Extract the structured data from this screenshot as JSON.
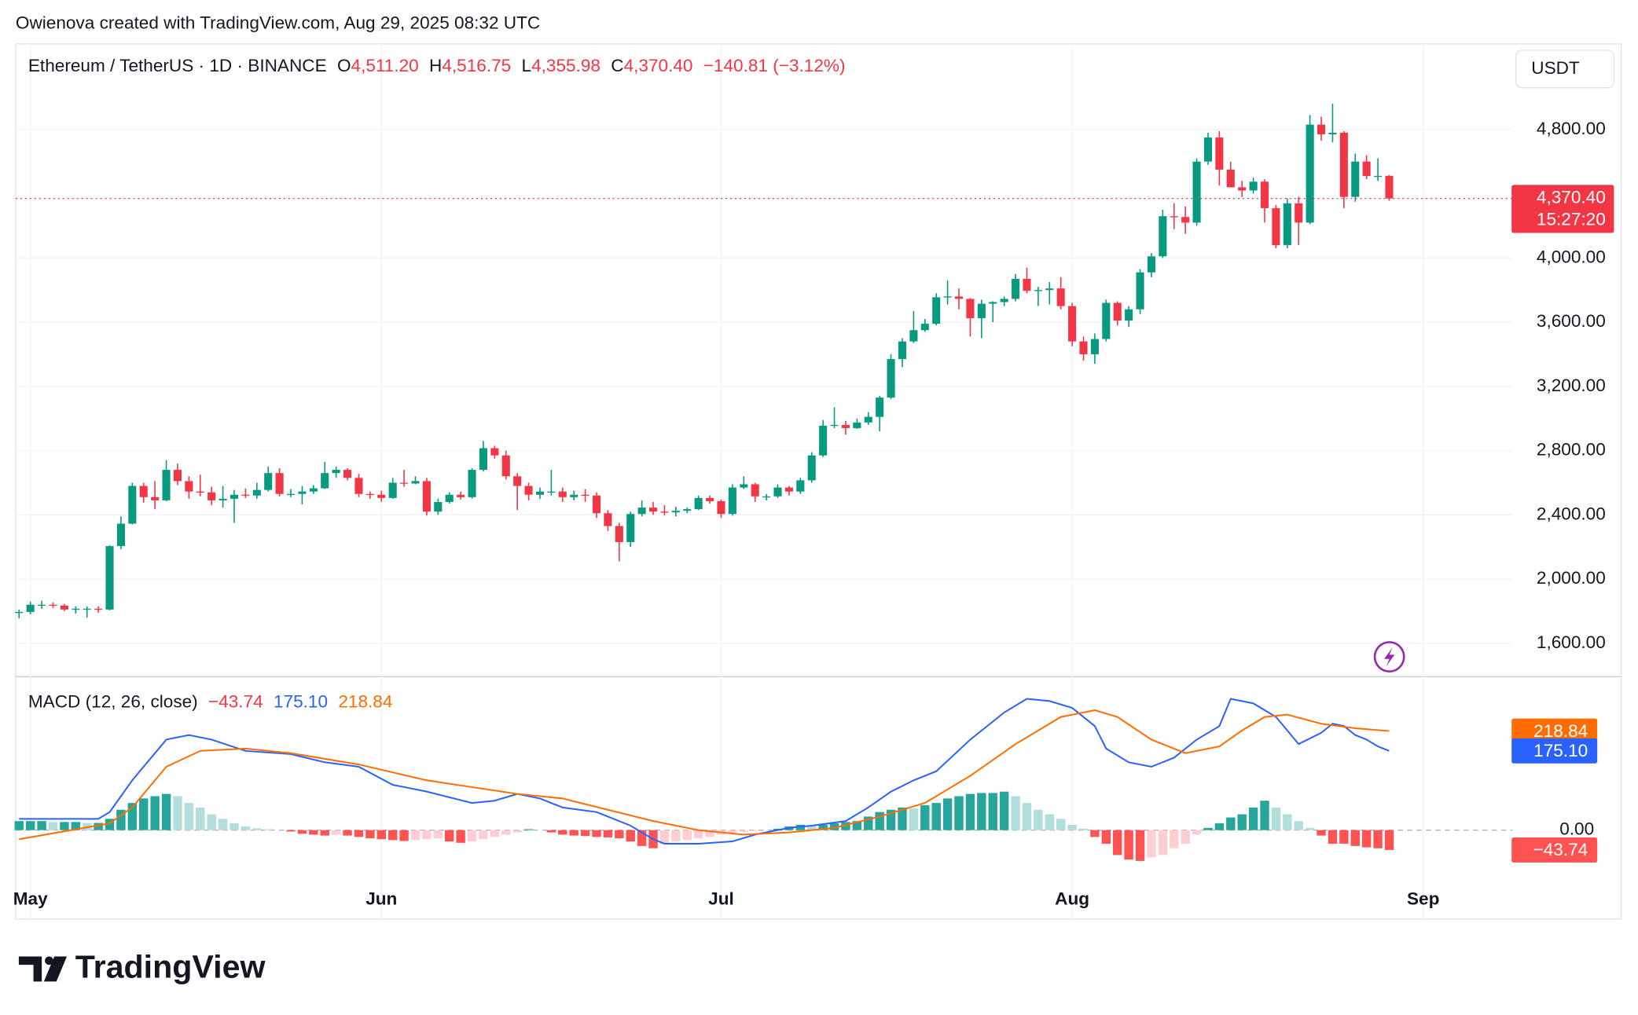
{
  "page": {
    "attribution": "Owienova created with TradingView.com, Aug 29, 2025 08:32 UTC",
    "logo": "TradingView"
  },
  "chart_data": {
    "type": "candlestick",
    "legend": {
      "symbol": "Ethereum / TetherUS · 1D · BINANCE",
      "o_label": "O",
      "o": "4,511.20",
      "h_label": "H",
      "h": "4,516.75",
      "l_label": "L",
      "l": "4,355.98",
      "c_label": "C",
      "c": "4,370.40",
      "change": "−140.81 (−3.12%)"
    },
    "currency": "USDT",
    "countdown": "15:27:20",
    "up_color": "#089981",
    "down_color": "#f23645",
    "open": [
      1790,
      1795,
      1840,
      1840,
      1835,
      1810,
      1815,
      1815,
      1810,
      2205,
      2345,
      2580,
      2510,
      2490,
      2680,
      2610,
      2545,
      2540,
      2490,
      2500,
      2525,
      2520,
      2555,
      2660,
      2530,
      2530,
      2545,
      2565,
      2660,
      2680,
      2630,
      2530,
      2525,
      2505,
      2600,
      2595,
      2610,
      2420,
      2480,
      2525,
      2510,
      2680,
      2815,
      2770,
      2640,
      2580,
      2525,
      2545,
      2545,
      2510,
      2525,
      2520,
      2410,
      2330,
      2230,
      2405,
      2445,
      2420,
      2415,
      2425,
      2435,
      2505,
      2485,
      2405,
      2570,
      2590,
      2515,
      2515,
      2570,
      2545,
      2615,
      2770,
      2955,
      2960,
      2940,
      2975,
      3010,
      3130,
      3370,
      3480,
      3550,
      3590,
      3755,
      3760,
      3745,
      3625,
      3715,
      3725,
      3745,
      3870,
      3795,
      3800,
      3810,
      3700,
      3480,
      3400,
      3495,
      3720,
      3610,
      3680,
      3910,
      4010,
      4260,
      4255,
      4220,
      4600,
      4750,
      4550,
      4440,
      4420,
      4475,
      4310,
      4080,
      4340,
      4220,
      4830,
      4770,
      4780,
      4380,
      4600,
      4510,
      4511.2
    ],
    "high": [
      1810,
      1860,
      1865,
      1855,
      1845,
      1830,
      1830,
      1830,
      2210,
      2390,
      2600,
      2600,
      2610,
      2740,
      2720,
      2640,
      2650,
      2575,
      2580,
      2555,
      2565,
      2600,
      2700,
      2690,
      2560,
      2580,
      2585,
      2730,
      2700,
      2690,
      2655,
      2545,
      2550,
      2630,
      2680,
      2640,
      2630,
      2500,
      2540,
      2545,
      2690,
      2860,
      2830,
      2800,
      2660,
      2600,
      2570,
      2680,
      2570,
      2550,
      2560,
      2540,
      2430,
      2350,
      2420,
      2490,
      2480,
      2460,
      2450,
      2445,
      2520,
      2520,
      2495,
      2590,
      2640,
      2600,
      2530,
      2590,
      2580,
      2630,
      2790,
      2990,
      3070,
      2985,
      3000,
      3040,
      3140,
      3400,
      3500,
      3670,
      3620,
      3780,
      3860,
      3810,
      3750,
      3740,
      3730,
      3760,
      3900,
      3940,
      3820,
      3850,
      3880,
      3720,
      3510,
      3530,
      3740,
      3730,
      3700,
      3930,
      4030,
      4300,
      4340,
      4320,
      4620,
      4780,
      4790,
      4600,
      4480,
      4500,
      4490,
      4330,
      4370,
      4380,
      4890,
      4880,
      4960,
      4790,
      4650,
      4640,
      4620,
      4516.75
    ],
    "low": [
      1755,
      1780,
      1815,
      1820,
      1800,
      1785,
      1760,
      1790,
      1805,
      2185,
      2340,
      2475,
      2435,
      2485,
      2585,
      2500,
      2515,
      2460,
      2445,
      2350,
      2505,
      2500,
      2545,
      2515,
      2510,
      2465,
      2530,
      2560,
      2630,
      2615,
      2510,
      2500,
      2480,
      2500,
      2575,
      2590,
      2395,
      2400,
      2470,
      2495,
      2500,
      2670,
      2750,
      2620,
      2430,
      2490,
      2500,
      2520,
      2480,
      2490,
      2480,
      2380,
      2300,
      2110,
      2200,
      2390,
      2400,
      2395,
      2390,
      2410,
      2430,
      2470,
      2380,
      2395,
      2560,
      2480,
      2490,
      2505,
      2520,
      2530,
      2600,
      2760,
      2940,
      2900,
      2935,
      2960,
      2920,
      3120,
      3320,
      3470,
      3540,
      3580,
      3710,
      3680,
      3510,
      3500,
      3600,
      3700,
      3730,
      3780,
      3700,
      3710,
      3680,
      3450,
      3360,
      3340,
      3480,
      3580,
      3570,
      3650,
      3880,
      4000,
      4180,
      4150,
      4200,
      4580,
      4450,
      4440,
      4380,
      4400,
      4220,
      4060,
      4060,
      4080,
      4210,
      4730,
      4720,
      4310,
      4350,
      4490,
      4480,
      4355.98
    ],
    "close": [
      1795,
      1840,
      1840,
      1835,
      1810,
      1815,
      1815,
      1810,
      2205,
      2345,
      2580,
      2510,
      2490,
      2680,
      2610,
      2545,
      2540,
      2490,
      2500,
      2525,
      2520,
      2555,
      2660,
      2530,
      2530,
      2545,
      2565,
      2660,
      2680,
      2630,
      2530,
      2525,
      2505,
      2600,
      2595,
      2610,
      2420,
      2480,
      2525,
      2510,
      2680,
      2815,
      2770,
      2640,
      2580,
      2525,
      2545,
      2545,
      2510,
      2525,
      2520,
      2410,
      2330,
      2230,
      2405,
      2445,
      2420,
      2415,
      2425,
      2435,
      2505,
      2485,
      2405,
      2570,
      2590,
      2515,
      2515,
      2570,
      2545,
      2615,
      2770,
      2955,
      2960,
      2940,
      2975,
      3010,
      3130,
      3370,
      3480,
      3550,
      3590,
      3755,
      3760,
      3745,
      3625,
      3715,
      3725,
      3745,
      3870,
      3795,
      3800,
      3810,
      3700,
      3480,
      3400,
      3495,
      3720,
      3610,
      3680,
      3910,
      4010,
      4260,
      4255,
      4220,
      4600,
      4750,
      4550,
      4440,
      4420,
      4475,
      4310,
      4080,
      4340,
      4220,
      4830,
      4770,
      4780,
      4380,
      4600,
      4510,
      4511.2,
      4370.4
    ],
    "xlim": [
      -0.3,
      131.9
    ],
    "xticks": [
      {
        "value": 1,
        "label": "May"
      },
      {
        "value": 32,
        "label": "Jun"
      },
      {
        "value": 62,
        "label": "Jul"
      },
      {
        "value": 93,
        "label": "Aug"
      },
      {
        "value": 124,
        "label": "Sep"
      }
    ],
    "ylim": [
      1392,
      5333
    ],
    "yticks": [
      {
        "value": 1600,
        "label": "1,600.00"
      },
      {
        "value": 2000,
        "label": "2,000.00"
      },
      {
        "value": 2400,
        "label": "2,400.00"
      },
      {
        "value": 2800,
        "label": "2,800.00"
      },
      {
        "value": 3200,
        "label": "3,200.00"
      },
      {
        "value": 3600,
        "label": "3,600.00"
      },
      {
        "value": 4000,
        "label": "4,000.00"
      },
      {
        "value": 4800,
        "label": "4,800.00"
      }
    ],
    "grid": true,
    "macd": {
      "title": "MACD (12, 26, close)",
      "ylim": [
        -196,
        339
      ],
      "yticks": [
        {
          "value": 0,
          "label": "0.00"
        }
      ],
      "histogram": {
        "value_label": "−43.74",
        "colors": [
          "#26a69a",
          "#b2dfdb",
          "#ff5252",
          "#ffcdd2"
        ],
        "values": [
          20,
          20,
          20,
          18,
          18,
          18,
          16,
          16,
          25,
          45,
          60,
          70,
          75,
          80,
          75,
          60,
          50,
          35,
          25,
          15,
          8,
          4,
          2,
          0,
          -3,
          -8,
          -10,
          -12,
          -10,
          -12,
          -15,
          -18,
          -20,
          -22,
          -24,
          -22,
          -20,
          -18,
          -25,
          -28,
          -25,
          -20,
          -15,
          -10,
          -5,
          2,
          0,
          -5,
          -10,
          -12,
          -13,
          -15,
          -16,
          -18,
          -25,
          -35,
          -40,
          -30,
          -25,
          -22,
          -18,
          -15,
          -10,
          -6,
          -4,
          -2,
          0,
          3,
          8,
          12,
          10,
          12,
          15,
          18,
          20,
          30,
          40,
          45,
          50,
          48,
          55,
          60,
          70,
          75,
          80,
          82,
          82,
          85,
          75,
          60,
          45,
          35,
          25,
          12,
          3,
          -15,
          -30,
          -55,
          -65,
          -68,
          -60,
          -55,
          -40,
          -30,
          -10,
          5,
          15,
          28,
          35,
          50,
          65,
          50,
          35,
          20,
          5,
          -12,
          -30,
          -30,
          -35,
          -38,
          -40,
          -43.74
        ]
      },
      "series": [
        {
          "color": "#2962ff",
          "value_label": "175.10",
          "x": [
            0,
            7,
            8,
            10,
            13,
            15,
            17,
            20,
            24,
            27,
            30,
            33,
            36,
            40,
            42,
            44,
            46,
            48,
            51,
            54,
            56,
            57,
            60,
            63,
            65,
            68,
            70,
            73,
            75,
            77,
            79,
            81,
            84,
            87,
            89,
            91,
            93,
            95,
            96,
            98,
            100,
            102,
            104,
            106,
            107,
            109,
            111,
            112,
            113,
            115,
            116,
            117,
            118,
            119,
            120,
            121
          ],
          "values": [
            25,
            25,
            40,
            110,
            200,
            210,
            200,
            175,
            168,
            150,
            140,
            100,
            85,
            60,
            65,
            80,
            70,
            50,
            40,
            10,
            -20,
            -30,
            -30,
            -25,
            -10,
            5,
            10,
            20,
            50,
            85,
            110,
            130,
            200,
            260,
            290,
            285,
            270,
            230,
            180,
            150,
            140,
            160,
            200,
            230,
            290,
            280,
            250,
            220,
            190,
            215,
            235,
            230,
            210,
            200,
            185,
            175.1
          ]
        },
        {
          "color": "#ff6d00",
          "value_label": "218.84",
          "x": [
            0,
            8,
            10,
            13,
            16,
            20,
            24,
            30,
            36,
            40,
            44,
            48,
            52,
            56,
            60,
            64,
            68,
            72,
            76,
            80,
            84,
            88,
            92,
            95,
            97,
            100,
            103,
            106,
            108,
            110,
            112,
            115,
            118,
            121
          ],
          "values": [
            -20,
            15,
            50,
            140,
            175,
            180,
            170,
            145,
            110,
            95,
            80,
            70,
            45,
            20,
            0,
            -10,
            -5,
            5,
            30,
            60,
            120,
            190,
            250,
            265,
            250,
            200,
            170,
            185,
            220,
            250,
            255,
            235,
            225,
            218.84
          ]
        }
      ]
    }
  }
}
